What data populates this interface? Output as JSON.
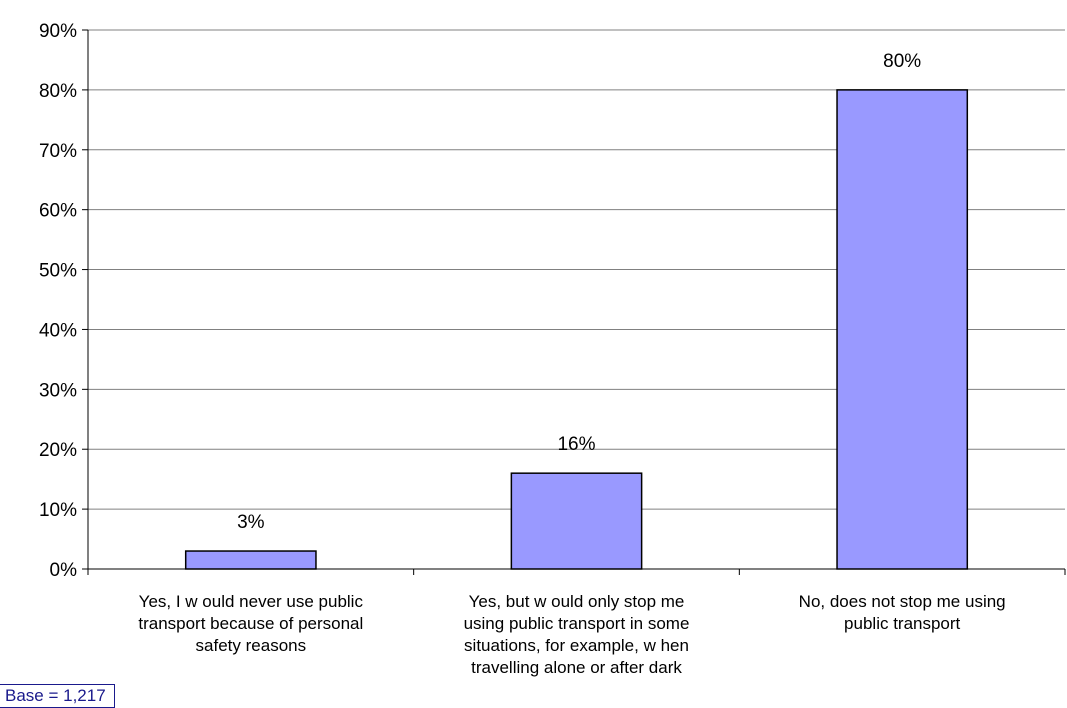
{
  "chart_data": {
    "type": "bar",
    "categories": [
      [
        "Yes, I w ould never use public",
        "transport because of personal",
        "safety reasons"
      ],
      [
        "Yes, but w ould only stop me",
        "using public transport in some",
        "situations, for example, w hen",
        "travelling alone or after dark"
      ],
      [
        "No, does not stop me using",
        "public transport"
      ]
    ],
    "values": [
      3,
      16,
      80
    ],
    "data_labels": [
      "3%",
      "16%",
      "80%"
    ],
    "y_ticks": [
      "0%",
      "10%",
      "20%",
      "30%",
      "40%",
      "50%",
      "60%",
      "70%",
      "80%",
      "90%"
    ],
    "ylim": [
      0,
      90
    ],
    "grid": true,
    "bar_color": "#9999ff",
    "bar_stroke": "#000000"
  },
  "note": "Base = 1,217"
}
